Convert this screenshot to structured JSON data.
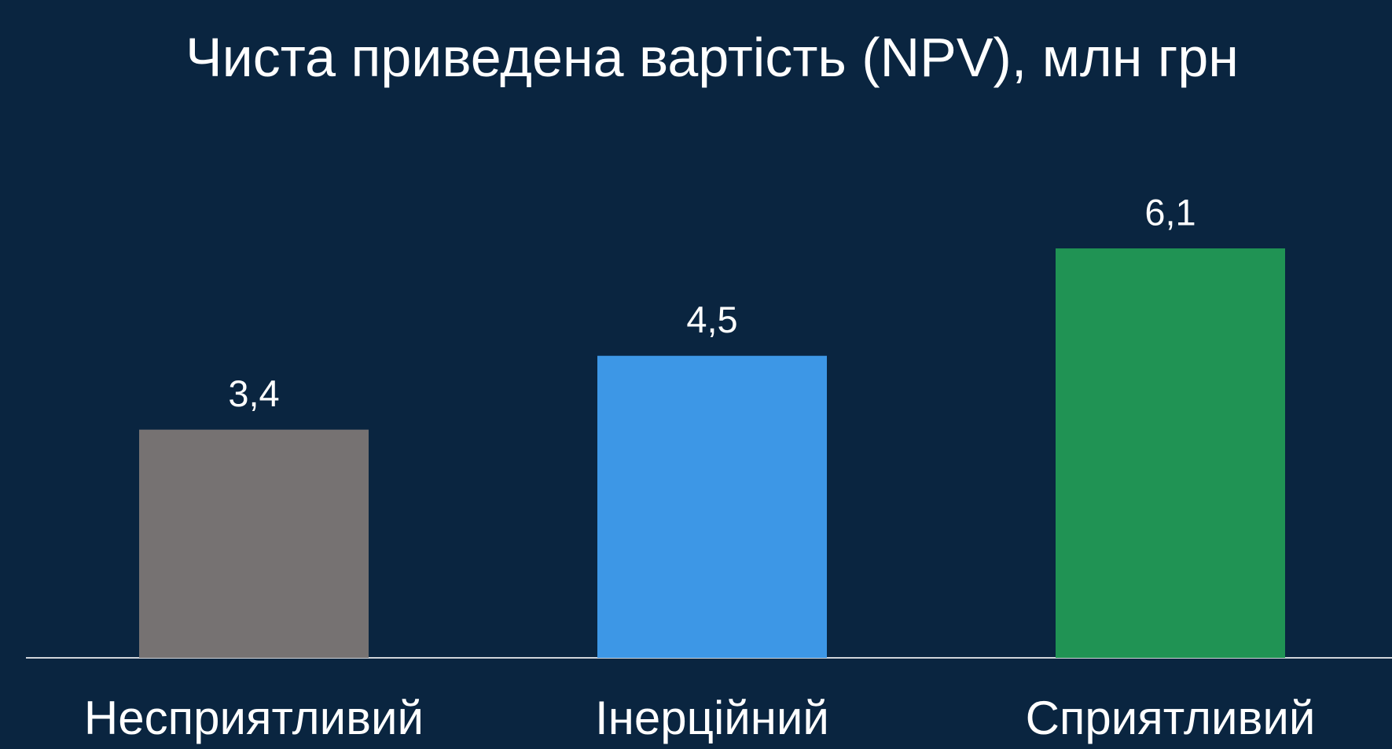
{
  "chart_data": {
    "type": "bar",
    "title": "Чиста приведена вартість (NPV), млн грн",
    "categories": [
      "Несприятливий",
      "Інерційний",
      "Сприятливий"
    ],
    "values": [
      3.4,
      4.5,
      6.1
    ],
    "value_labels": [
      "3,4",
      "4,5",
      "6,1"
    ],
    "colors": [
      "#767272",
      "#3d97e6",
      "#209354"
    ]
  }
}
